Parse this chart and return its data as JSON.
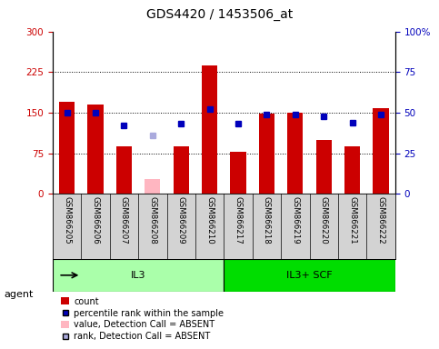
{
  "title": "GDS4420 / 1453506_at",
  "samples": [
    "GSM866205",
    "GSM866206",
    "GSM866207",
    "GSM866208",
    "GSM866209",
    "GSM866210",
    "GSM866217",
    "GSM866218",
    "GSM866219",
    "GSM866220",
    "GSM866221",
    "GSM866222"
  ],
  "count_values": [
    170,
    165,
    88,
    null,
    88,
    238,
    78,
    148,
    150,
    100,
    88,
    158
  ],
  "absent_bar_values": [
    null,
    null,
    null,
    28,
    null,
    null,
    null,
    null,
    null,
    null,
    null,
    null
  ],
  "rank_pct": [
    50,
    50,
    42,
    null,
    43,
    52,
    43,
    49,
    49,
    48,
    44,
    49
  ],
  "absent_rank_pct": [
    null,
    null,
    null,
    36,
    null,
    null,
    null,
    null,
    null,
    null,
    null,
    null
  ],
  "groups": [
    {
      "label": "IL3",
      "start": 0,
      "end": 6,
      "color": "#aaffaa"
    },
    {
      "label": "IL3+ SCF",
      "start": 6,
      "end": 12,
      "color": "#00dd00"
    }
  ],
  "ylim_left": [
    0,
    300
  ],
  "ylim_right": [
    0,
    100
  ],
  "yticks_left": [
    0,
    75,
    150,
    225,
    300
  ],
  "yticks_right": [
    0,
    25,
    50,
    75,
    100
  ],
  "ytick_labels_left": [
    "0",
    "75",
    "150",
    "225",
    "300"
  ],
  "ytick_labels_right": [
    "0",
    "25",
    "50",
    "75",
    "100%"
  ],
  "bar_color_red": "#cc0000",
  "bar_color_pink": "#ffb6c1",
  "dot_color_blue": "#0000bb",
  "dot_color_lightblue": "#aaaadd",
  "plot_bg": "#ffffff",
  "grid_bg": "#f5f5f5"
}
